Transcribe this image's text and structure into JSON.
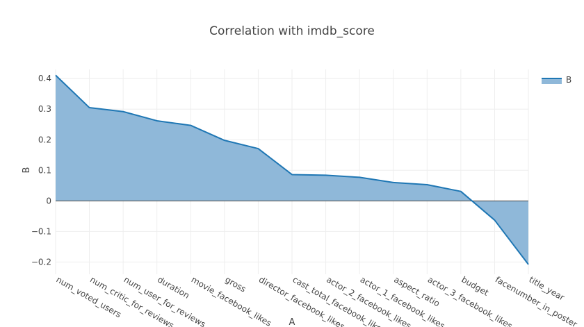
{
  "chart_data": {
    "type": "area",
    "title": "Correlation with imdb_score",
    "xlabel": "A",
    "ylabel": "B",
    "categories": [
      "num_voted_users",
      "num_critic_for_reviews",
      "num_user_for_reviews",
      "duration",
      "movie_facebook_likes",
      "gross",
      "director_facebook_likes",
      "cast_total_facebook_likes",
      "actor_2_facebook_likes",
      "actor_1_facebook_likes",
      "aspect_ratio",
      "actor_3_facebook_likes",
      "budget",
      "facenumber_in_poster",
      "title_year"
    ],
    "series": [
      {
        "name": "B",
        "values": [
          0.411,
          0.305,
          0.292,
          0.262,
          0.247,
          0.198,
          0.171,
          0.086,
          0.084,
          0.077,
          0.06,
          0.053,
          0.031,
          -0.063,
          -0.208
        ]
      }
    ],
    "ylim": [
      -0.24,
      0.43
    ],
    "yticks": [
      -0.2,
      -0.1,
      0,
      0.1,
      0.2,
      0.3,
      0.4
    ],
    "ytick_labels": [
      "−0.2",
      "−0.1",
      "0",
      "0.1",
      "0.2",
      "0.3",
      "0.4"
    ],
    "grid": true,
    "legend_position": "top-right",
    "colors": {
      "line": "#1f77b4",
      "fill": "#8fb8d9",
      "grid": "#eeeeee",
      "zero_line": "#444444"
    }
  }
}
